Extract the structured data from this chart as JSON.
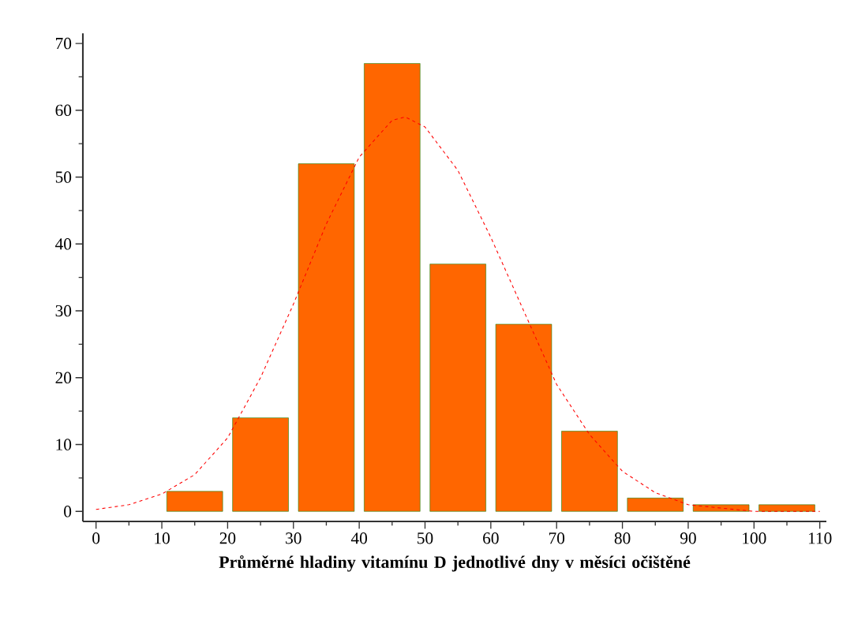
{
  "chart_data": {
    "type": "histogram",
    "xlabel": "Průměrné hladiny vitamínu D jednotlivé dny v měsíci očištěné",
    "bins": [
      10,
      20,
      30,
      40,
      50,
      60,
      70,
      80,
      90,
      100,
      110
    ],
    "series": [
      {
        "color": "#ff6600",
        "values": [
          3,
          14,
          52,
          67,
          37,
          28,
          12,
          2,
          1,
          1
        ]
      },
      {
        "type": "line",
        "color": "#ff0000",
        "line_style": "dashed",
        "x": [
          0,
          5,
          10,
          15,
          20,
          25,
          30,
          35,
          40,
          45,
          47,
          50,
          55,
          60,
          65,
          70,
          75,
          80,
          85,
          90,
          95,
          100,
          110
        ],
        "values": [
          0.3,
          1,
          2.6,
          5.5,
          11,
          20,
          31,
          43,
          53,
          58.5,
          59,
          57.5,
          51,
          41,
          30,
          19,
          11.5,
          6,
          2.8,
          1,
          0.5,
          0,
          0
        ]
      }
    ],
    "xlim": [
      -2,
      111
    ],
    "ylim": [
      -1.5,
      71.5
    ],
    "xticks": [
      0,
      10,
      20,
      30,
      40,
      50,
      60,
      70,
      80,
      90,
      100,
      110
    ],
    "yticks": [
      0,
      10,
      20,
      30,
      40,
      50,
      60,
      70
    ],
    "grid": false,
    "marker": "none"
  }
}
